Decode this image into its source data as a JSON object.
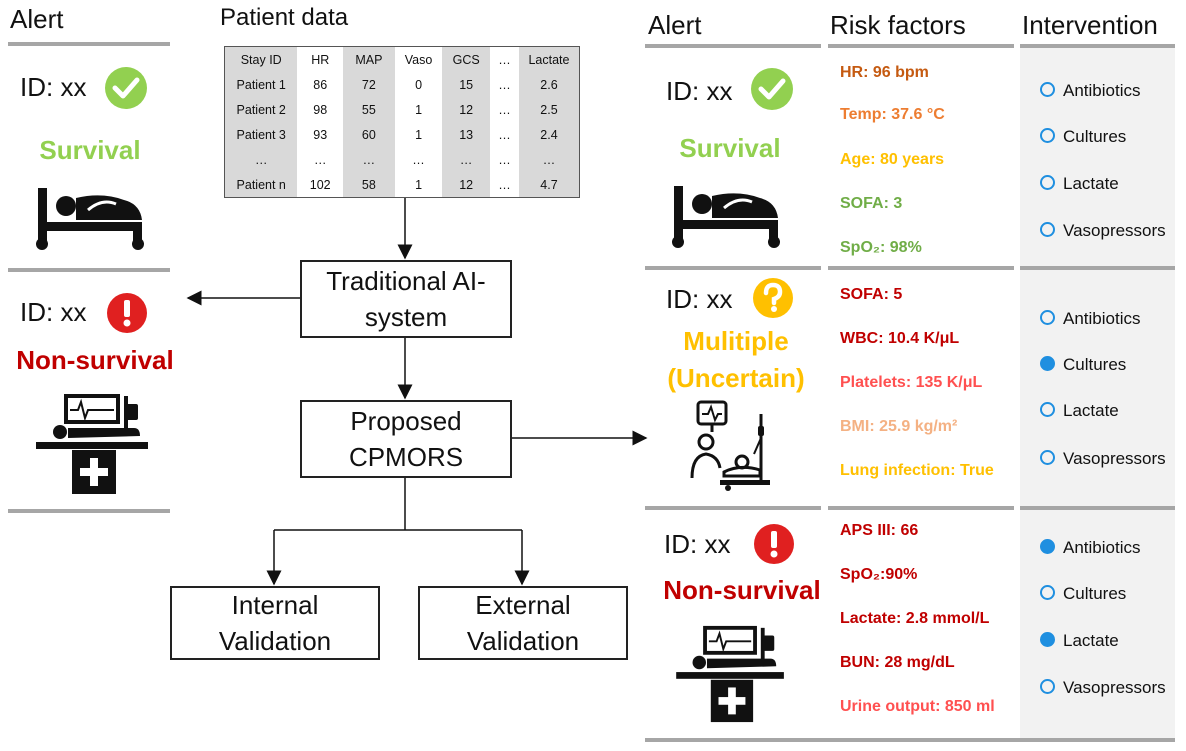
{
  "left": {
    "header": "Alert",
    "survival_card": {
      "id": "ID: xx",
      "status": "Survival"
    },
    "nonsurvival_card": {
      "id": "ID: xx",
      "status": "Non-survival"
    }
  },
  "patient_data": {
    "title": "Patient data",
    "columns": [
      "Stay ID",
      "HR",
      "MAP",
      "Vaso",
      "GCS",
      "…",
      "Lactate"
    ],
    "rows": [
      [
        "Patient 1",
        "86",
        "72",
        "0",
        "15",
        "…",
        "2.6"
      ],
      [
        "Patient 2",
        "98",
        "55",
        "1",
        "12",
        "…",
        "2.5"
      ],
      [
        "Patient 3",
        "93",
        "60",
        "1",
        "13",
        "…",
        "2.4"
      ],
      [
        "…",
        "…",
        "…",
        "…",
        "…",
        "…",
        "…"
      ],
      [
        "Patient n",
        "102",
        "58",
        "1",
        "12",
        "…",
        "4.7"
      ]
    ]
  },
  "flow": {
    "traditional": "Traditional AI-system",
    "proposed": "Proposed CPMORS",
    "internal": "Internal Validation",
    "external": "External Validation"
  },
  "right": {
    "headers": {
      "alert": "Alert",
      "risk_factors": "Risk factors",
      "intervention": "Intervention"
    },
    "cards": [
      {
        "id": "ID: xx",
        "status": "Survival",
        "status_color": "#92d050",
        "risk_factors": [
          {
            "text": "HR: 96 bpm",
            "color": "#c55a11"
          },
          {
            "text": "Temp: 37.6 °C",
            "color": "#ed7d31"
          },
          {
            "text": "Age: 80 years",
            "color": "#ffc000"
          },
          {
            "text": "SOFA: 3",
            "color": "#70ad47"
          },
          {
            "text": "SpO₂: 98%",
            "color": "#70ad47"
          }
        ],
        "interventions": [
          {
            "label": "Antibiotics",
            "selected": false
          },
          {
            "label": "Cultures",
            "selected": false
          },
          {
            "label": "Lactate",
            "selected": false
          },
          {
            "label": "Vasopressors",
            "selected": false
          }
        ]
      },
      {
        "id": "ID: xx",
        "status": "Mulitiple",
        "status_line2": "(Uncertain)",
        "status_color": "#ffc000",
        "risk_factors": [
          {
            "text": "SOFA: 5",
            "color": "#c00000"
          },
          {
            "text": "WBC: 10.4 K/μL",
            "color": "#c00000"
          },
          {
            "text": "Platelets: 135 K/μL",
            "color": "#ff5050"
          },
          {
            "text": "BMI: 25.9 kg/m²",
            "color": "#f4b183"
          },
          {
            "text": "Lung infection: True",
            "color": "#ffc000"
          }
        ],
        "interventions": [
          {
            "label": "Antibiotics",
            "selected": false
          },
          {
            "label": "Cultures",
            "selected": true
          },
          {
            "label": "Lactate",
            "selected": false
          },
          {
            "label": "Vasopressors",
            "selected": false
          }
        ]
      },
      {
        "id": "ID: xx",
        "status": "Non-survival",
        "status_color": "#c00000",
        "risk_factors": [
          {
            "text": "APS III: 66",
            "color": "#c00000"
          },
          {
            "text": "SpO₂:90%",
            "color": "#c00000"
          },
          {
            "text": "Lactate: 2.8 mmol/L",
            "color": "#c00000"
          },
          {
            "text": "BUN: 28 mg/dL",
            "color": "#c00000"
          },
          {
            "text": "Urine output: 850 ml",
            "color": "#ff5050"
          }
        ],
        "interventions": [
          {
            "label": "Antibiotics",
            "selected": true
          },
          {
            "label": "Cultures",
            "selected": false
          },
          {
            "label": "Lactate",
            "selected": true
          },
          {
            "label": "Vasopressors",
            "selected": false
          }
        ]
      }
    ]
  },
  "colors": {
    "survival": "#92d050",
    "nonsurvival": "#c00000",
    "uncertain": "#ffc000",
    "check": "#92d050",
    "alert_red": "#e02020",
    "question": "#ffc000",
    "intervention_bg": "#f2f2f2",
    "dot": "#1f8fe0"
  },
  "icons": [
    "check-icon",
    "exclamation-icon",
    "question-icon",
    "bed-patient-icon",
    "icu-monitor-icon",
    "nurse-patient-icon"
  ]
}
